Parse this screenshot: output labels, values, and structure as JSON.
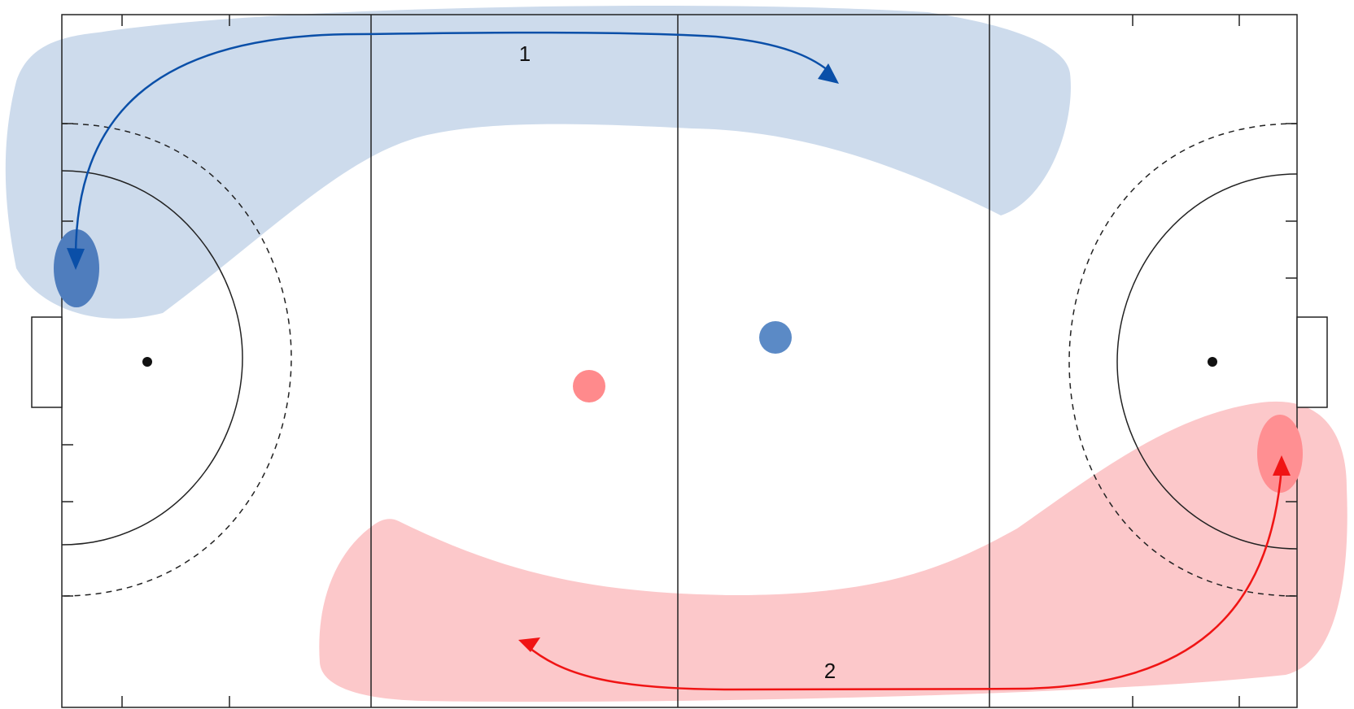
{
  "diagram": {
    "labels": {
      "move_1": "1",
      "move_2": "2"
    },
    "colors": {
      "blue_zone": "#cddbec",
      "blue_arrow": "#0a4fa8",
      "blue_dot": "#5b8ac6",
      "blue_target": "#4f7dbd",
      "red_zone": "#fcc8ca",
      "red_arrow": "#f01414",
      "red_dot": "#ff8a8c",
      "red_target": "#ff8f92",
      "lines": "#222222",
      "field": "#ffffff"
    }
  }
}
